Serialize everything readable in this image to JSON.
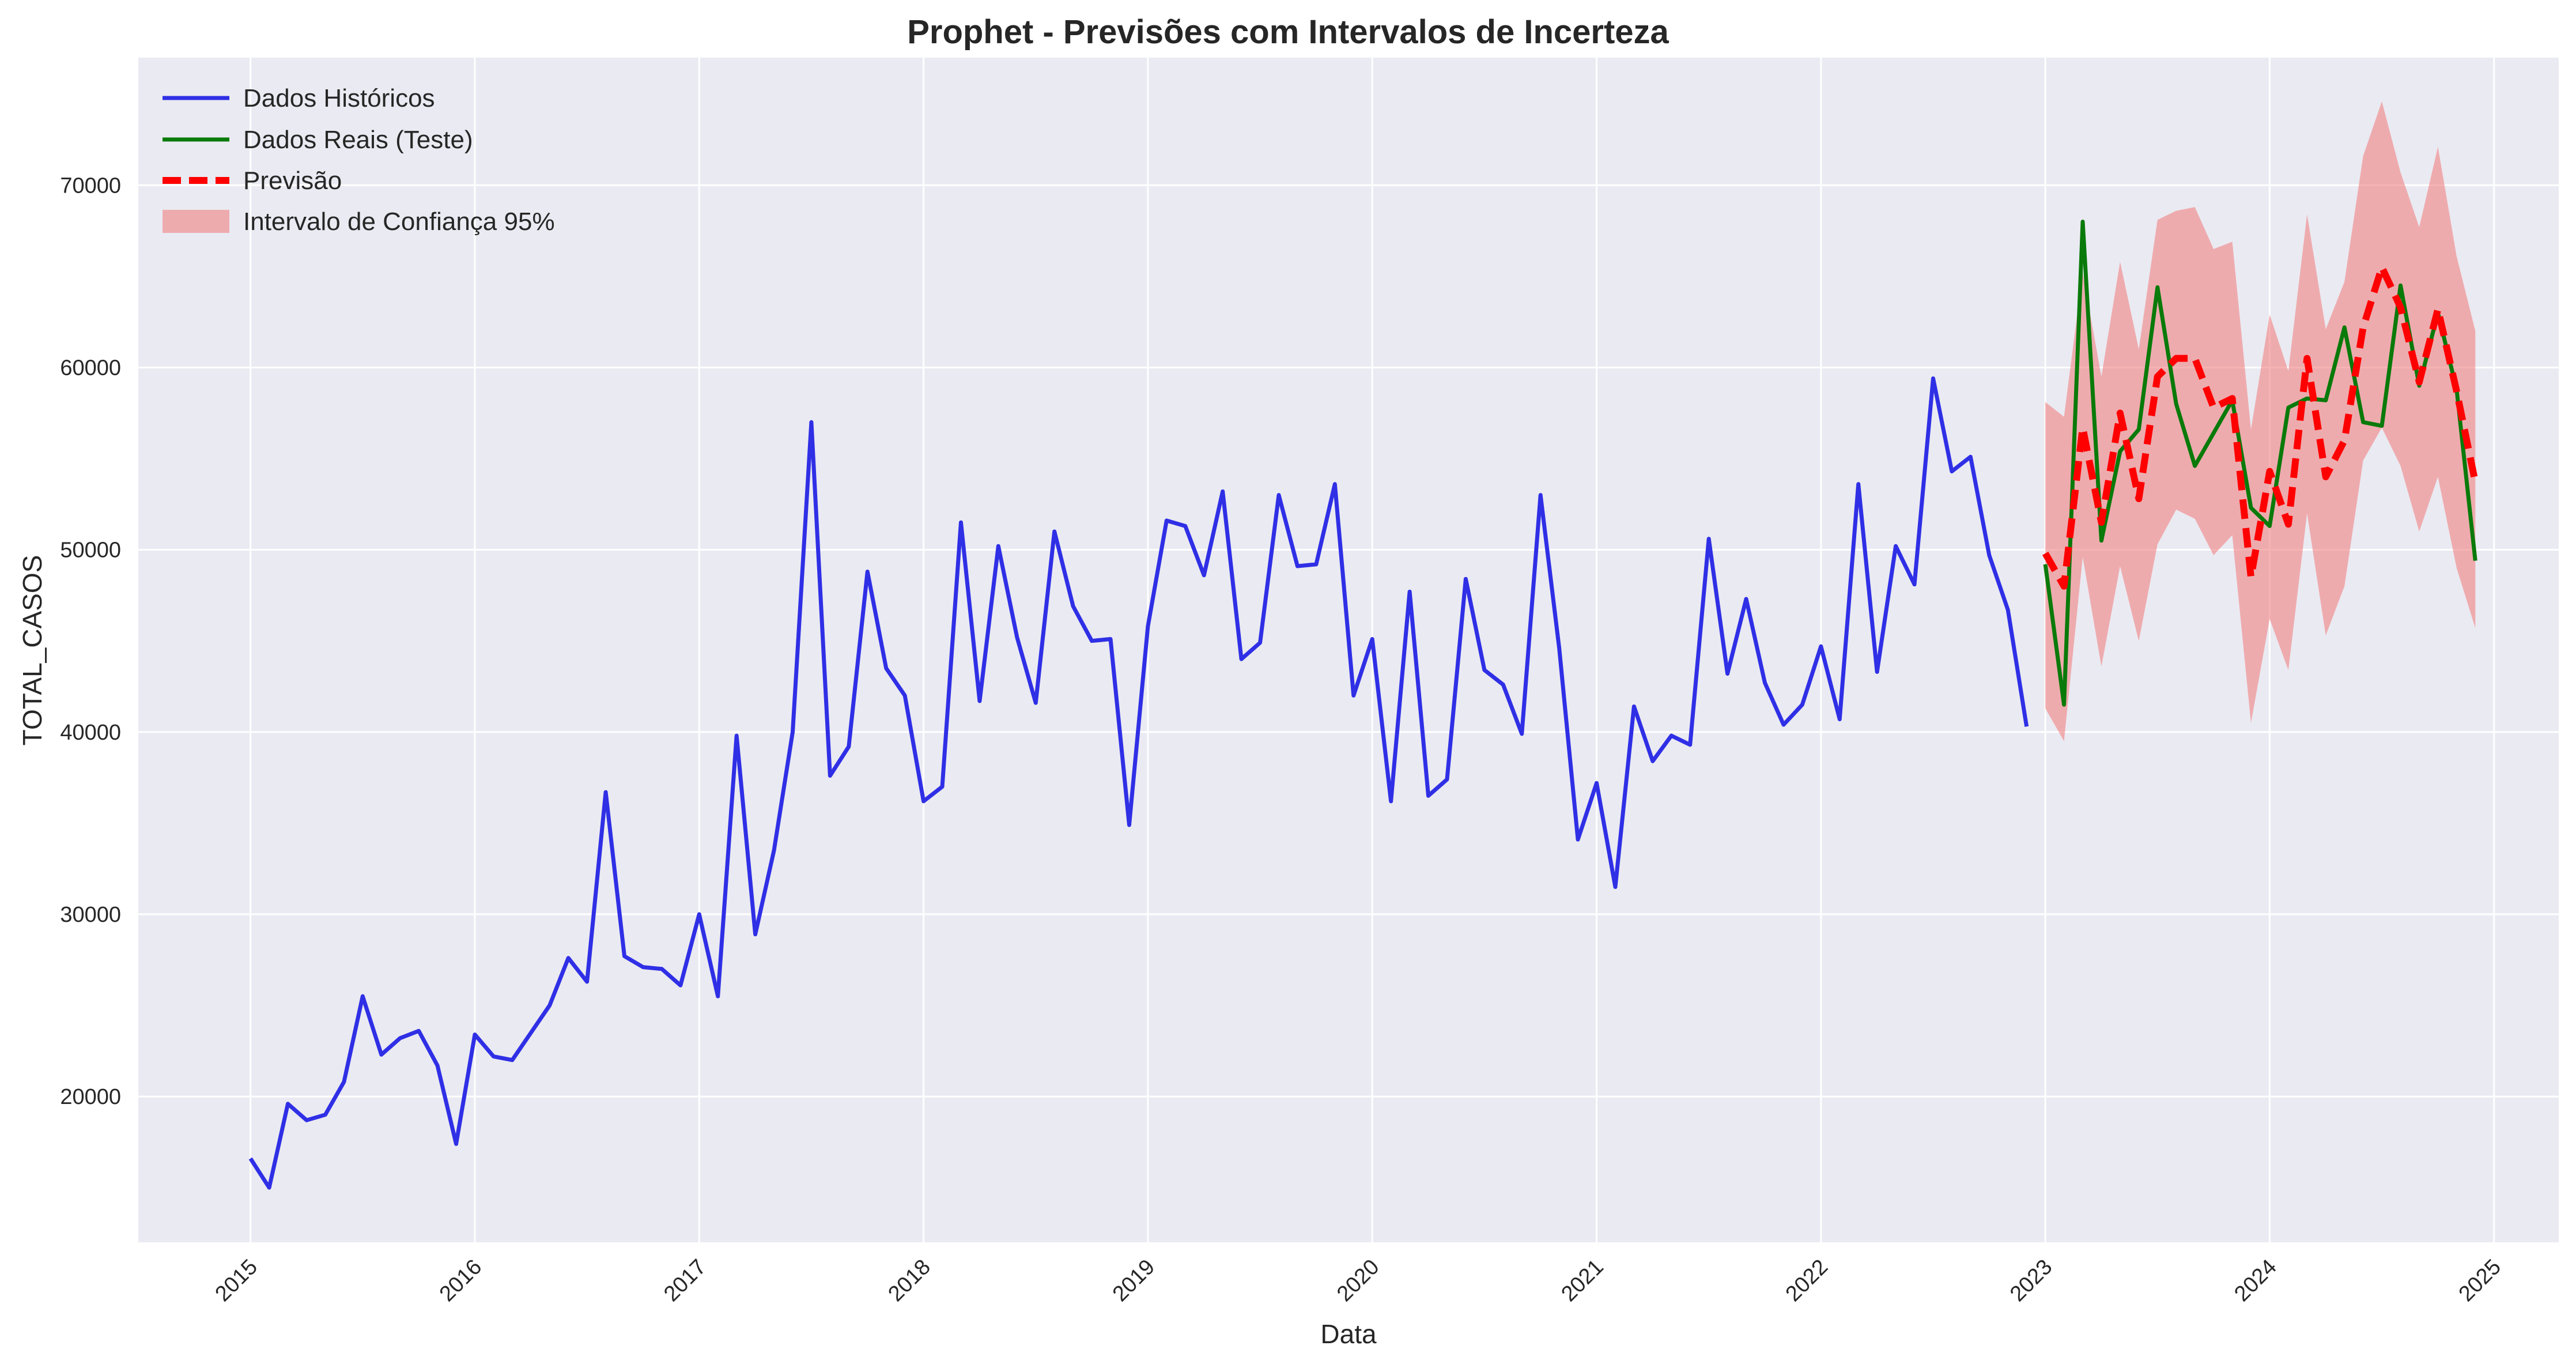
{
  "chart_data": {
    "type": "line",
    "title": "Prophet - Previsões com Intervalos de Incerteza",
    "xlabel": "Data",
    "ylabel": "TOTAL_CASOS",
    "x_range": [
      "2014-07-01",
      "2025-04-15"
    ],
    "ylim": [
      12000,
      77000
    ],
    "x_ticks": [
      "2015",
      "2016",
      "2017",
      "2018",
      "2019",
      "2020",
      "2021",
      "2022",
      "2023",
      "2024",
      "2025"
    ],
    "y_ticks": [
      "20000",
      "30000",
      "40000",
      "50000",
      "60000",
      "70000"
    ],
    "grid": true,
    "legend": {
      "position": "top-left",
      "entries": [
        "Dados Históricos",
        "Dados Reais (Teste)",
        "Previsão",
        "Intervalo de Confiança 95%"
      ]
    },
    "colors": {
      "historical": "#2f2fe6",
      "actual": "#0a7a0a",
      "forecast": "#ff0000",
      "interval": "#f08080",
      "background": "#eaeaf2",
      "grid": "#ffffff"
    },
    "series": [
      {
        "name": "Dados Históricos",
        "style": "solid",
        "x": [
          "2015-01",
          "2015-02",
          "2015-03",
          "2015-04",
          "2015-05",
          "2015-06",
          "2015-07",
          "2015-08",
          "2015-09",
          "2015-10",
          "2015-11",
          "2015-12",
          "2016-01",
          "2016-02",
          "2016-03",
          "2016-04",
          "2016-05",
          "2016-06",
          "2016-07",
          "2016-08",
          "2016-09",
          "2016-10",
          "2016-11",
          "2016-12",
          "2017-01",
          "2017-02",
          "2017-03",
          "2017-04",
          "2017-05",
          "2017-06",
          "2017-07",
          "2017-08",
          "2017-09",
          "2017-10",
          "2017-11",
          "2017-12",
          "2018-01",
          "2018-02",
          "2018-03",
          "2018-04",
          "2018-05",
          "2018-06",
          "2018-07",
          "2018-08",
          "2018-09",
          "2018-10",
          "2018-11",
          "2018-12",
          "2019-01",
          "2019-02",
          "2019-03",
          "2019-04",
          "2019-05",
          "2019-06",
          "2019-07",
          "2019-08",
          "2019-09",
          "2019-10",
          "2019-11",
          "2019-12",
          "2020-01",
          "2020-02",
          "2020-03",
          "2020-04",
          "2020-05",
          "2020-06",
          "2020-07",
          "2020-08",
          "2020-09",
          "2020-10",
          "2020-11",
          "2020-12",
          "2021-01",
          "2021-02",
          "2021-03",
          "2021-04",
          "2021-05",
          "2021-06",
          "2021-07",
          "2021-08",
          "2021-09",
          "2021-10",
          "2021-11",
          "2021-12",
          "2022-01",
          "2022-02",
          "2022-03",
          "2022-04",
          "2022-05",
          "2022-06",
          "2022-07",
          "2022-08",
          "2022-09",
          "2022-10",
          "2022-11",
          "2022-12"
        ],
        "values": [
          16600,
          15000,
          19600,
          18700,
          19000,
          20800,
          25500,
          22300,
          23200,
          23600,
          21700,
          17400,
          23400,
          22200,
          22000,
          23500,
          25000,
          27600,
          26300,
          36700,
          27700,
          27100,
          27000,
          26100,
          30000,
          25500,
          39800,
          28900,
          33500,
          40000,
          57000,
          37600,
          39200,
          48800,
          43500,
          42000,
          36200,
          37000,
          51500,
          41700,
          50200,
          45200,
          41600,
          51000,
          46900,
          45000,
          45100,
          34900,
          45800,
          51600,
          51300,
          48600,
          53200,
          44000,
          44900,
          53000,
          49100,
          49200,
          53600,
          42000,
          45100,
          36200,
          47700,
          36500,
          37400,
          48400,
          43400,
          42600,
          39900,
          53000,
          44600,
          34100,
          37200,
          31500,
          41400,
          38400,
          39800,
          39300,
          50600,
          43200,
          47300,
          42700,
          40400,
          41500,
          44700,
          40700,
          53600,
          43300,
          50200,
          48100,
          59400,
          54300,
          55100,
          49700,
          46700,
          40300
        ]
      },
      {
        "name": "Dados Reais (Teste)",
        "style": "solid",
        "x": [
          "2023-01",
          "2023-02",
          "2023-03",
          "2023-04",
          "2023-05",
          "2023-06",
          "2023-07",
          "2023-08",
          "2023-09",
          "2023-10",
          "2023-11",
          "2023-12",
          "2024-01",
          "2024-02",
          "2024-03",
          "2024-04",
          "2024-05",
          "2024-06",
          "2024-07",
          "2024-08",
          "2024-09",
          "2024-10",
          "2024-11",
          "2024-12"
        ],
        "values": [
          49200,
          41500,
          68000,
          50500,
          55400,
          56600,
          64400,
          58000,
          54600,
          56400,
          58200,
          52300,
          51300,
          57800,
          58300,
          58200,
          62200,
          57000,
          56800,
          64500,
          59000,
          63000,
          58800,
          49400
        ]
      },
      {
        "name": "Previsão",
        "style": "dashed",
        "x": [
          "2023-01",
          "2023-02",
          "2023-03",
          "2023-04",
          "2023-05",
          "2023-06",
          "2023-07",
          "2023-08",
          "2023-09",
          "2023-10",
          "2023-11",
          "2023-12",
          "2024-01",
          "2024-02",
          "2024-03",
          "2024-04",
          "2024-05",
          "2024-06",
          "2024-07",
          "2024-08",
          "2024-09",
          "2024-10",
          "2024-11",
          "2024-12"
        ],
        "values": [
          49800,
          48000,
          56700,
          51500,
          57500,
          52800,
          59500,
          60500,
          60500,
          57800,
          58300,
          48500,
          54300,
          51400,
          60500,
          54000,
          56000,
          62200,
          65500,
          63300,
          59200,
          63200,
          58700,
          53700
        ],
        "lower": [
          41300,
          39500,
          49600,
          43600,
          49100,
          45000,
          50300,
          52200,
          51700,
          49700,
          50800,
          40500,
          46200,
          43400,
          52000,
          45300,
          48000,
          54900,
          56700,
          54600,
          51000,
          54000,
          49000,
          45700
        ],
        "upper": [
          58100,
          57300,
          65200,
          59500,
          65800,
          61000,
          68100,
          68600,
          68800,
          66500,
          66900,
          56600,
          62900,
          59800,
          68400,
          62100,
          64700,
          71600,
          74600,
          70700,
          67700,
          72100,
          66100,
          62000
        ]
      }
    ]
  }
}
